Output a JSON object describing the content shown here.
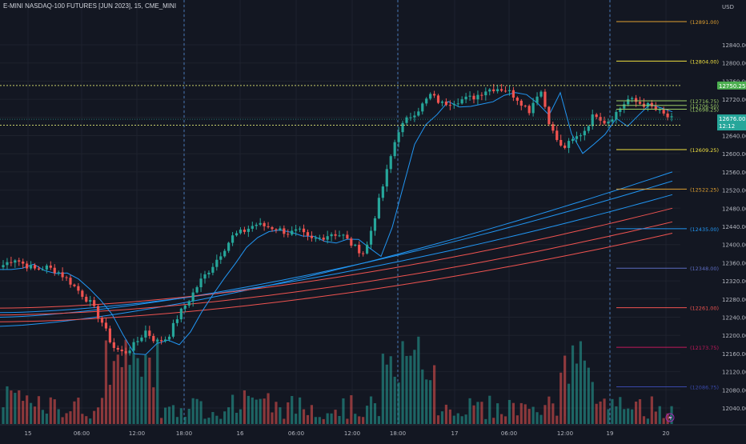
{
  "header": {
    "title": "E-MINI NASDAQ-100 FUTURES [JUN 2023], 15, CME_MINI"
  },
  "axis": {
    "currency": "USD",
    "ticks": [
      "12840.00",
      "12800.00",
      "12760.00",
      "12720.00",
      "12680.00",
      "12640.00",
      "12600.00",
      "12560.00",
      "12520.00",
      "12480.00",
      "12440.00",
      "12400.00",
      "12360.00",
      "12320.00",
      "12280.00",
      "12240.00",
      "12200.00",
      "12160.00",
      "12120.00",
      "12080.00",
      "12040.00"
    ]
  },
  "price_badges": {
    "top": {
      "text": "12750.25",
      "color": "#4caf50"
    },
    "current": {
      "price": "12676.00",
      "countdown": "12:12",
      "color": "#26a69a"
    },
    "bottom": {
      "text": "12663.00",
      "color": "#4caf50"
    }
  },
  "levels": [
    {
      "label": "(12891.00)",
      "value": 12891.0,
      "color": "#e0a030"
    },
    {
      "label": "(12804.00)",
      "value": 12804.0,
      "color": "#f0e040"
    },
    {
      "label": "(12716.75)",
      "value": 12716.75,
      "color": "#9ccc65"
    },
    {
      "label": "(12706.50)",
      "value": 12706.5,
      "color": "#9ccc65"
    },
    {
      "label": "(12698.25)",
      "value": 12698.25,
      "color": "#9ccc65"
    },
    {
      "label": "(12609.25)",
      "value": 12609.25,
      "color": "#f0e040"
    },
    {
      "label": "(12522.25)",
      "value": 12522.25,
      "color": "#e0a030"
    },
    {
      "label": "(12435.00)",
      "value": 12435.0,
      "color": "#2196f3"
    },
    {
      "label": "(12348.00)",
      "value": 12348.0,
      "color": "#5c6bc0"
    },
    {
      "label": "(12261.00)",
      "value": 12261.0,
      "color": "#ef5350"
    },
    {
      "label": "(12173.75)",
      "value": 12173.75,
      "color": "#c2185b"
    },
    {
      "label": "(12086.75)",
      "value": 12086.75,
      "color": "#3949ab"
    }
  ],
  "time_axis": [
    "15",
    "06:00",
    "12:00",
    "18:00",
    "16",
    "06:00",
    "12:00",
    "18:00",
    "17",
    "06:00",
    "12:00",
    "19",
    "20"
  ],
  "chart_data": {
    "type": "candlestick",
    "ylim": [
      12020,
      12900
    ],
    "y_ticks": [
      12840,
      12800,
      12760,
      12720,
      12680,
      12640,
      12600,
      12560,
      12520,
      12480,
      12440,
      12400,
      12360,
      12320,
      12280,
      12240,
      12200,
      12160,
      12120,
      12080,
      12040
    ],
    "x_labels": [
      "15",
      "06:00",
      "12:00",
      "18:00",
      "16",
      "06:00",
      "12:00",
      "18:00",
      "17",
      "06:00",
      "12:00",
      "19",
      "20"
    ],
    "series": [
      {
        "name": "price",
        "values": [
          12355,
          12370,
          12355,
          12345,
          12350,
          12340,
          12320,
          12295,
          12270,
          12230,
          12175,
          12160,
          12180,
          12210,
          12185,
          12195,
          12245,
          12280,
          12320,
          12350,
          12385,
          12420,
          12430,
          12445,
          12440,
          12435,
          12425,
          12430,
          12410,
          12415,
          12425,
          12420,
          12395,
          12380,
          12470,
          12560,
          12650,
          12680,
          12700,
          12730,
          12710,
          12715,
          12720,
          12725,
          12740,
          12745,
          12740,
          12720,
          12695,
          12745,
          12655,
          12610,
          12630,
          12650,
          12690,
          12668,
          12692,
          12720,
          12712,
          12705,
          12690,
          12676
        ]
      }
    ]
  },
  "colors": {
    "up": "#26a69a",
    "down": "#ef5350",
    "background": "#131722",
    "grid": "#1e222d",
    "text": "#b2b5be"
  },
  "icons": {
    "bolt": "lightning-bolt-icon"
  }
}
